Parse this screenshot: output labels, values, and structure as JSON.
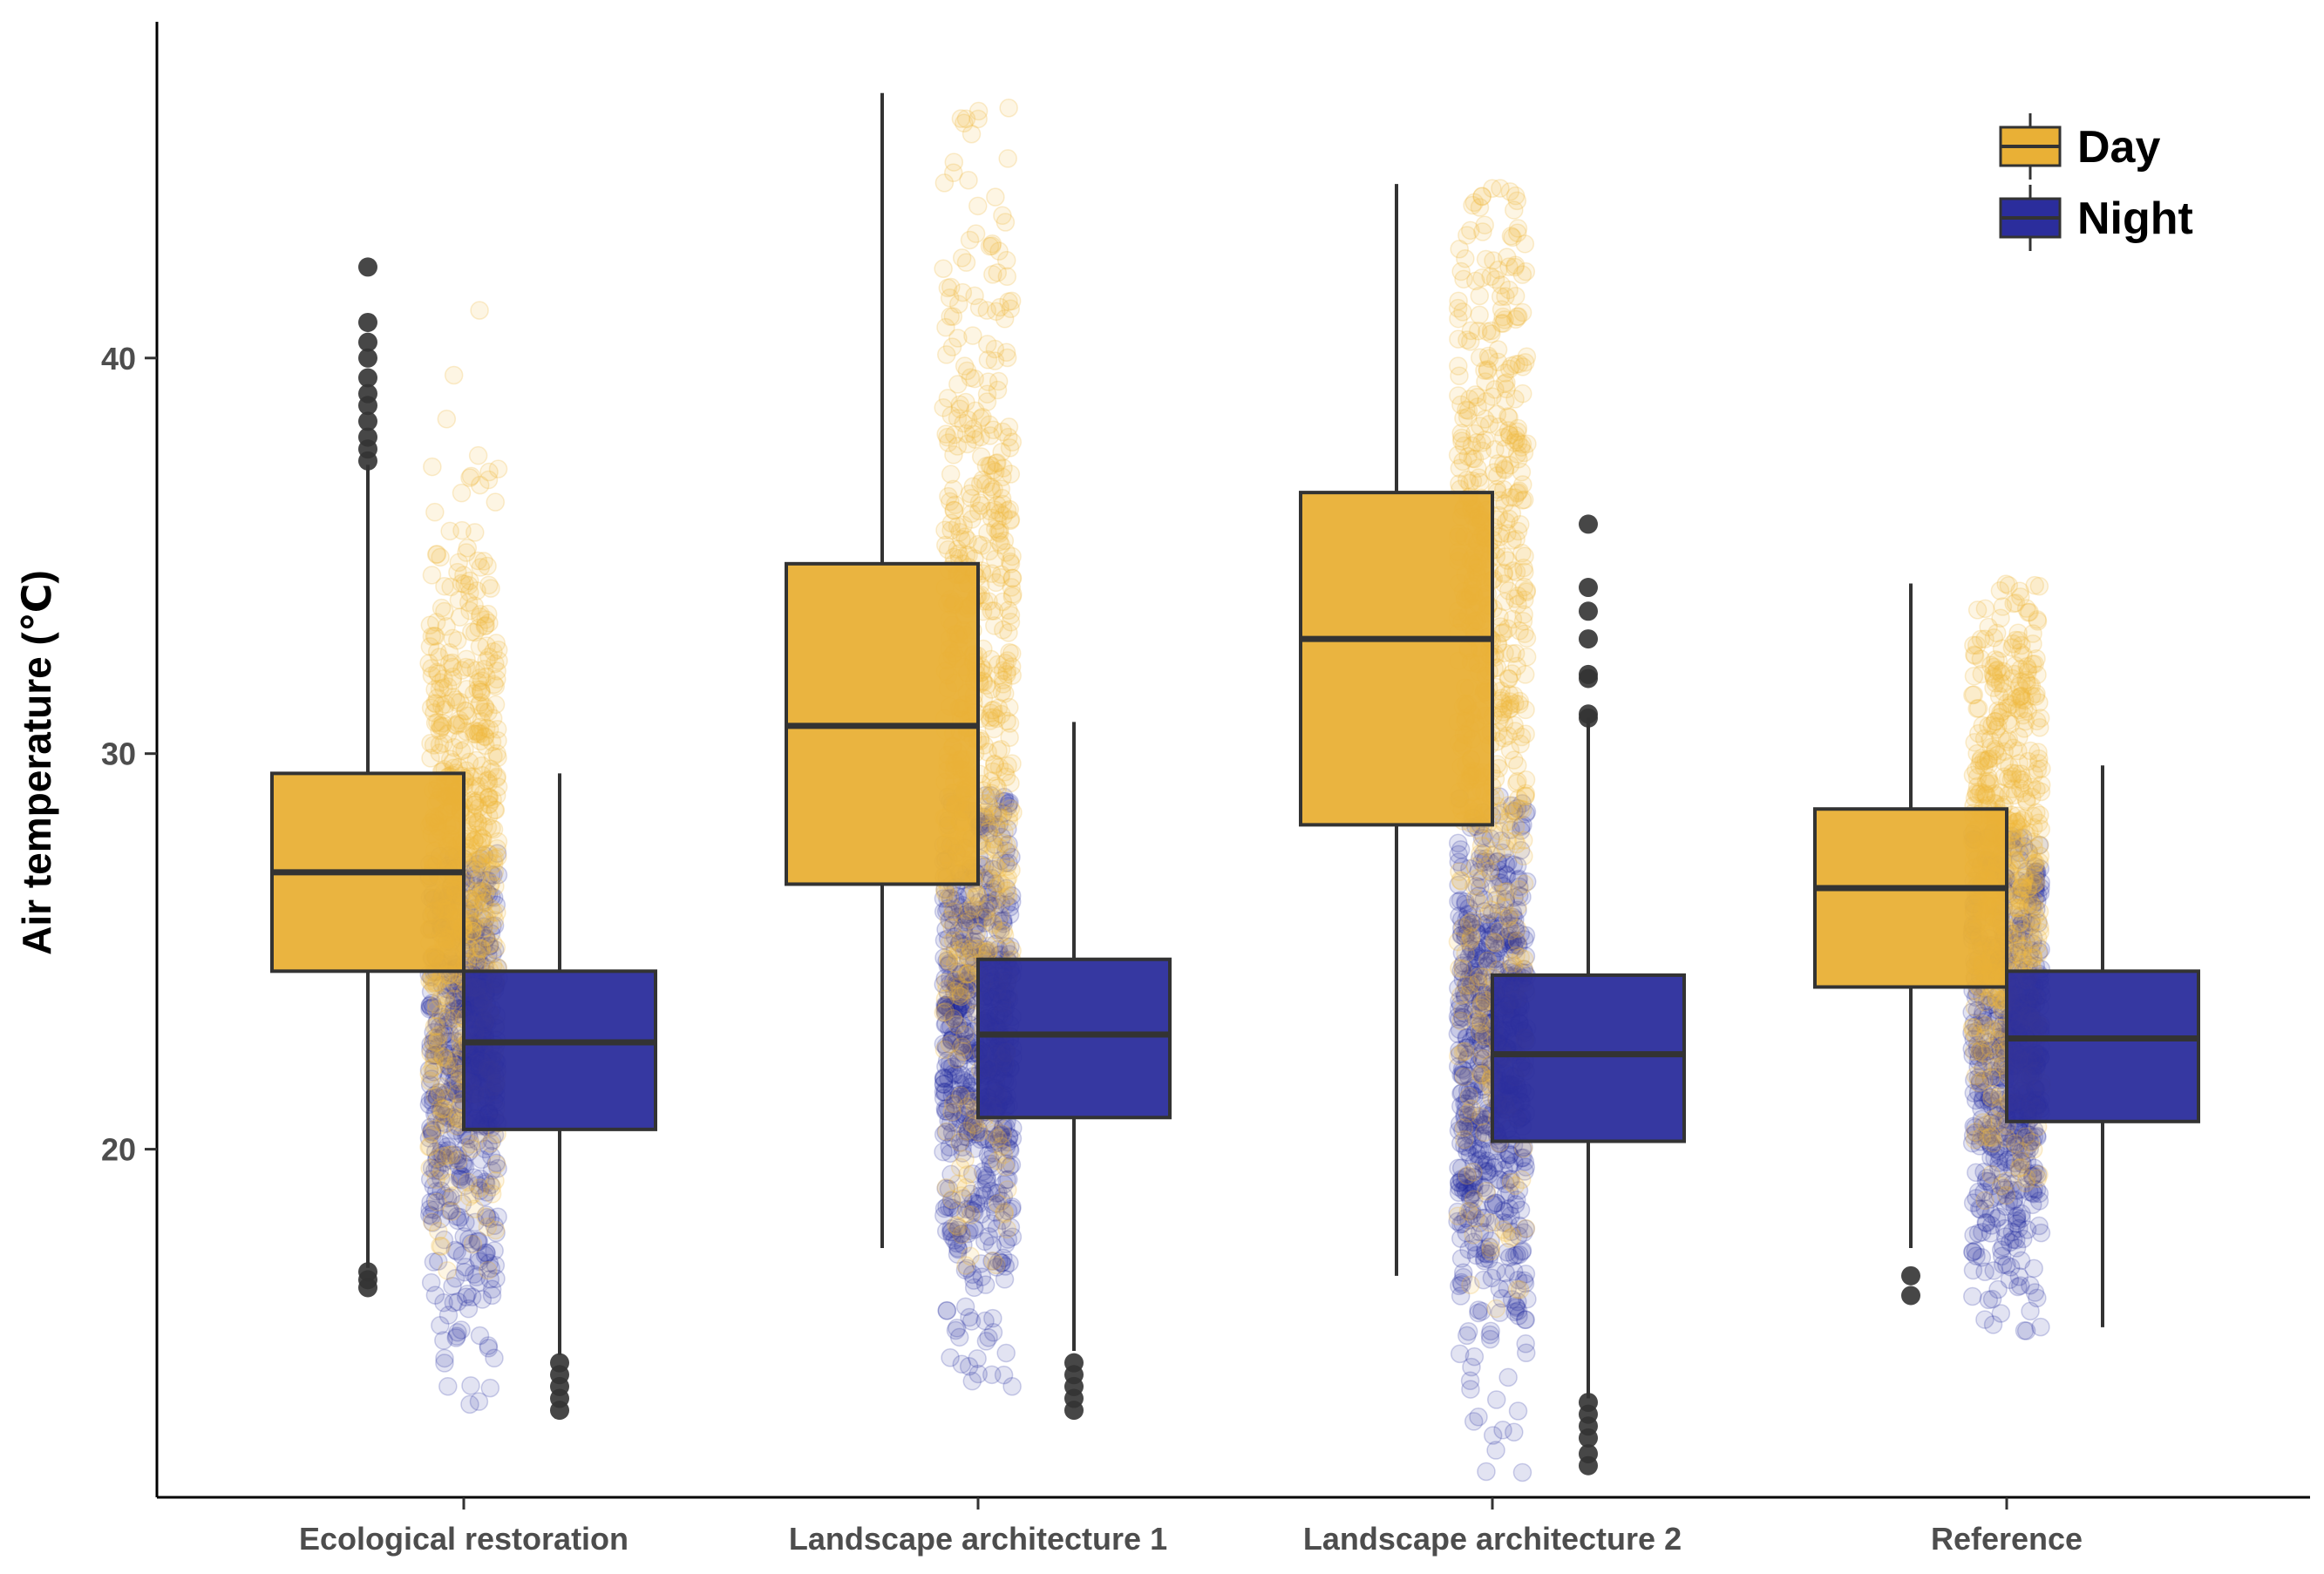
{
  "chart_data": {
    "type": "box",
    "title": "",
    "xlabel": "",
    "ylabel": "Air temperature (℃)",
    "ylim": [
      11.2,
      48.5
    ],
    "yticks": [
      20,
      30,
      40
    ],
    "categories": [
      "Ecological restoration",
      "Landscape architecture 1",
      "Landscape architecture 2",
      "Reference"
    ],
    "legend": {
      "position": "top-right"
    },
    "grid": false,
    "series": [
      {
        "name": "Day",
        "color": "#e9b036",
        "jitter_color": "#f0b83a",
        "boxes": [
          {
            "whisker_low": 17.0,
            "q1": 24.5,
            "median": 27.0,
            "q3": 29.5,
            "whisker_high": 37.3,
            "outliers": [
              42.3,
              40.9,
              40.4,
              40.0,
              39.5,
              39.1,
              38.8,
              38.4,
              38.0,
              37.7,
              37.4,
              16.9,
              16.7,
              16.5
            ]
          },
          {
            "whisker_low": 17.5,
            "q1": 26.7,
            "median": 30.7,
            "q3": 34.8,
            "whisker_high": 46.7,
            "outliers": []
          },
          {
            "whisker_low": 16.8,
            "q1": 28.2,
            "median": 32.9,
            "q3": 36.6,
            "whisker_high": 44.4,
            "outliers": []
          },
          {
            "whisker_low": 17.5,
            "q1": 24.1,
            "median": 26.6,
            "q3": 28.6,
            "whisker_high": 34.3,
            "outliers": [
              16.8,
              16.3
            ]
          }
        ]
      },
      {
        "name": "Night",
        "color": "#2b2d9c",
        "jitter_color": "#1f2a9e",
        "boxes": [
          {
            "whisker_low": 14.8,
            "q1": 20.5,
            "median": 22.7,
            "q3": 24.5,
            "whisker_high": 29.5,
            "outliers": [
              14.6,
              14.3,
              14.0,
              13.7,
              13.4
            ]
          },
          {
            "whisker_low": 14.9,
            "q1": 20.8,
            "median": 22.9,
            "q3": 24.8,
            "whisker_high": 30.8,
            "outliers": [
              14.6,
              14.3,
              14.0,
              13.7,
              13.4
            ]
          },
          {
            "whisker_low": 13.7,
            "q1": 20.2,
            "median": 22.4,
            "q3": 24.4,
            "whisker_high": 30.9,
            "outliers": [
              35.8,
              34.2,
              33.6,
              32.9,
              32.0,
              31.9,
              31.0,
              30.9,
              13.6,
              13.3,
              13.0,
              12.7,
              12.3,
              12.0
            ]
          },
          {
            "whisker_low": 15.5,
            "q1": 20.7,
            "median": 22.8,
            "q3": 24.5,
            "whisker_high": 29.7,
            "outliers": []
          }
        ]
      }
    ],
    "jitter_ranges": [
      {
        "day": [
          13.3,
          42.2
        ],
        "night": [
          13.3,
          27.5
        ]
      },
      {
        "day": [
          13.3,
          46.5
        ],
        "night": [
          14.0,
          29.0
        ]
      },
      {
        "day": [
          11.6,
          44.4
        ],
        "night": [
          11.6,
          29.0
        ]
      },
      {
        "day": [
          15.4,
          34.3
        ],
        "night": [
          15.4,
          28.0
        ]
      }
    ]
  }
}
